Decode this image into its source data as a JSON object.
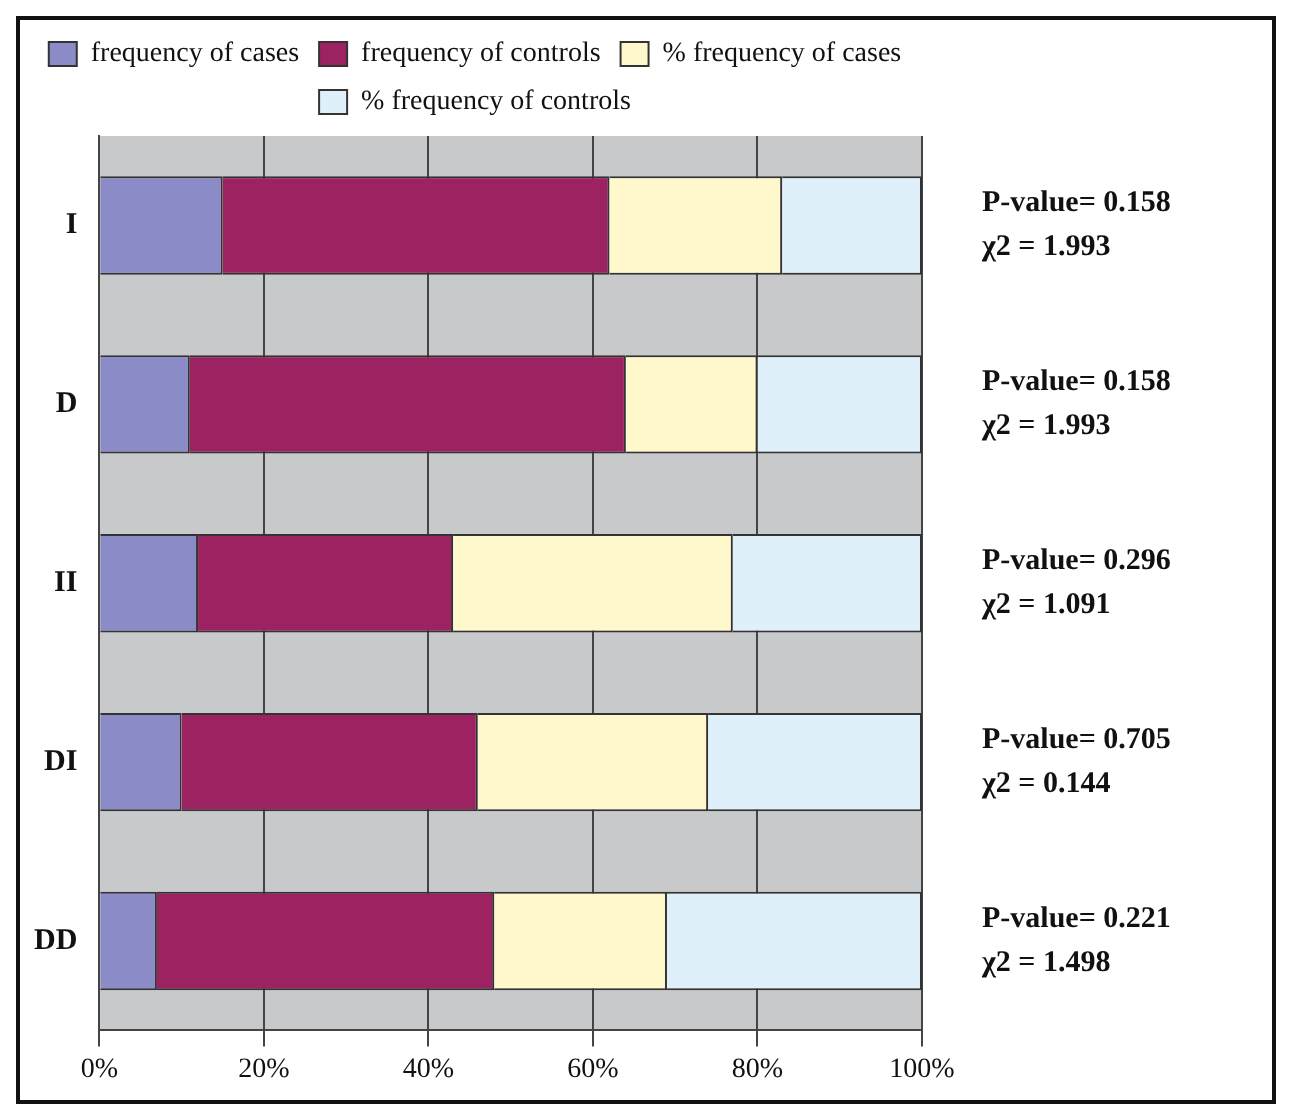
{
  "chart_data": {
    "type": "bar",
    "orientation": "horizontal",
    "stacked": true,
    "categories": [
      "I",
      "D",
      "II",
      "DI",
      "DD"
    ],
    "series": [
      {
        "name": "frequency of cases",
        "color": "#8b8bc8",
        "values": [
          15,
          11,
          12,
          10,
          7
        ]
      },
      {
        "name": "frequency of controls",
        "color": "#9c2262",
        "values": [
          47,
          53,
          31,
          36,
          41
        ]
      },
      {
        "name": "% frequency of cases",
        "color": "#fff8cc",
        "values": [
          21,
          16,
          34,
          28,
          21
        ]
      },
      {
        "name": "% frequency of controls",
        "color": "#dff0fb",
        "values": [
          17,
          20,
          23,
          26,
          31
        ]
      }
    ],
    "xlim": [
      0,
      100
    ],
    "xticks": [
      {
        "value": 0,
        "label": "0%"
      },
      {
        "value": 20,
        "label": "20%"
      },
      {
        "value": 40,
        "label": "40%"
      },
      {
        "value": 60,
        "label": "60%"
      },
      {
        "value": 80,
        "label": "80%"
      },
      {
        "value": 100,
        "label": "100%"
      }
    ],
    "grid": "x",
    "legend": "top",
    "annotations": [
      "P-value= 0.158",
      "χ2 = 1.993",
      "P-value= 0.158",
      "χ2 = 1.993",
      "P-value= 0.296",
      "χ2 = 1.091",
      "P-value= 0.705",
      "χ2 = 0.144",
      "P-value= 0.221",
      "χ2 = 1.498"
    ]
  }
}
